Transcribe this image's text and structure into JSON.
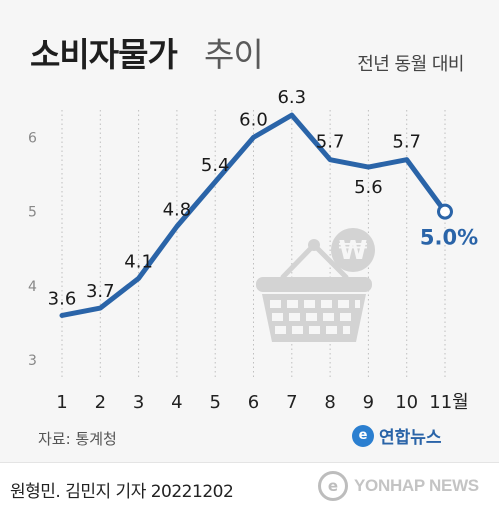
{
  "header": {
    "title_main": "소비자물가",
    "title_sub": "추이",
    "unit_label": "전년 동월 대비"
  },
  "source": "자료: 통계청",
  "agency": {
    "logo_glyph": "e",
    "name": "연합뉴스"
  },
  "footer": {
    "byline": "원형민. 김민지 기자  20221202",
    "watermark_logo": "e",
    "watermark_text": "YONHAP NEWS"
  },
  "colors": {
    "line": "#2a64a8",
    "highlight_label": "#2a64a8",
    "label": "#1a1a1a",
    "axis_tick": "#888888",
    "gridline": "#bfbfbf",
    "basket": "#d3d3d3"
  },
  "icons": [
    "shopping-basket-icon",
    "won-sign-icon"
  ],
  "chart_data": {
    "type": "line",
    "categories": [
      "1",
      "2",
      "3",
      "4",
      "5",
      "6",
      "7",
      "8",
      "9",
      "10",
      "11월"
    ],
    "values": [
      3.6,
      3.7,
      4.1,
      4.8,
      5.4,
      6.0,
      6.3,
      5.7,
      5.6,
      5.7,
      5.0
    ],
    "labels": [
      "3.6",
      "3.7",
      "4.1",
      "4.8",
      "5.4",
      "6.0",
      "6.3",
      "5.7",
      "5.6",
      "5.7",
      "5.0%"
    ],
    "yticks": [
      "3",
      "4",
      "5",
      "6"
    ],
    "ylim": [
      3,
      6.7
    ],
    "grid": "vertical dotted",
    "title": "",
    "xlabel": "",
    "ylabel": ""
  }
}
